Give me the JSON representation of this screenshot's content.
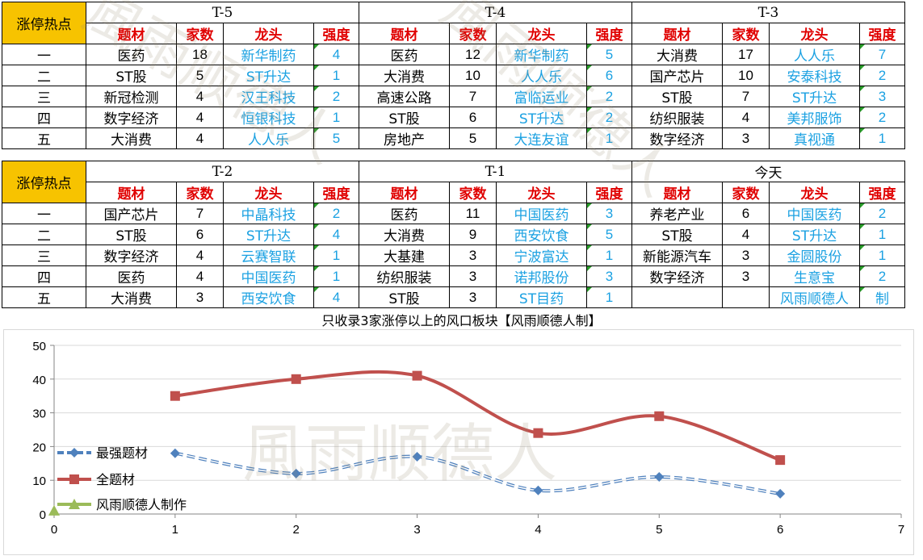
{
  "title_cell": "涨停热点",
  "headers": {
    "theme": "题材",
    "count": "家数",
    "leader": "龙头",
    "strength": "强度"
  },
  "ranks": [
    "一",
    "二",
    "三",
    "四",
    "五"
  ],
  "tables": [
    {
      "periods": [
        {
          "label": "T-5",
          "rows": [
            [
              "医药",
              "18",
              "新华制药",
              "4"
            ],
            [
              "ST股",
              "5",
              "ST升达",
              "1"
            ],
            [
              "新冠检测",
              "4",
              "汉王科技",
              "2"
            ],
            [
              "数字经济",
              "4",
              "恒银科技",
              "1"
            ],
            [
              "大消费",
              "4",
              "人人乐",
              "5"
            ]
          ]
        },
        {
          "label": "T-4",
          "rows": [
            [
              "医药",
              "12",
              "新华制药",
              "5"
            ],
            [
              "大消费",
              "10",
              "人人乐",
              "6"
            ],
            [
              "高速公路",
              "7",
              "富临运业",
              "2"
            ],
            [
              "ST股",
              "6",
              "ST升达",
              "2"
            ],
            [
              "房地产",
              "5",
              "大连友谊",
              "1"
            ]
          ]
        },
        {
          "label": "T-3",
          "rows": [
            [
              "大消费",
              "17",
              "人人乐",
              "7"
            ],
            [
              "国产芯片",
              "10",
              "安泰科技",
              "2"
            ],
            [
              "ST股",
              "7",
              "ST升达",
              "3"
            ],
            [
              "纺织服装",
              "4",
              "美邦服饰",
              "2"
            ],
            [
              "数字经济",
              "3",
              "真视通",
              "1"
            ]
          ]
        }
      ]
    },
    {
      "periods": [
        {
          "label": "T-2",
          "rows": [
            [
              "国产芯片",
              "7",
              "中晶科技",
              "2"
            ],
            [
              "ST股",
              "6",
              "ST升达",
              "4"
            ],
            [
              "数字经济",
              "4",
              "云赛智联",
              "1"
            ],
            [
              "医药",
              "4",
              "中国医药",
              "1"
            ],
            [
              "大消费",
              "3",
              "西安饮食",
              "4"
            ]
          ]
        },
        {
          "label": "T-1",
          "rows": [
            [
              "医药",
              "11",
              "中国医药",
              "3"
            ],
            [
              "大消费",
              "9",
              "西安饮食",
              "5"
            ],
            [
              "大基建",
              "3",
              "宁波富达",
              "1"
            ],
            [
              "纺织服装",
              "3",
              "诺邦股份",
              "3"
            ],
            [
              "ST股",
              "3",
              "ST目药",
              "1"
            ]
          ]
        },
        {
          "label": "今天",
          "rows": [
            [
              "养老产业",
              "6",
              "中国医药",
              "2"
            ],
            [
              "ST股",
              "4",
              "ST升达",
              "1"
            ],
            [
              "新能源汽车",
              "3",
              "金圆股份",
              "1"
            ],
            [
              "数字经济",
              "3",
              "生意宝",
              "2"
            ],
            [
              "",
              "",
              "风雨顺德人",
              "制"
            ]
          ]
        }
      ]
    }
  ],
  "note": "只收录3家涨停以上的风口板块【风雨顺德人制】",
  "watermark": "風雨顺德人",
  "chart_data": {
    "type": "line",
    "x": [
      1,
      2,
      3,
      4,
      5,
      6
    ],
    "series": [
      {
        "name": "最强题材",
        "values": [
          18,
          12,
          17,
          7,
          11,
          6
        ],
        "color": "#4f81bd",
        "style": "dashed",
        "marker": "diamond"
      },
      {
        "name": "全题材",
        "values": [
          35,
          40,
          41,
          24,
          29,
          16
        ],
        "color": "#c0504d",
        "style": "solid",
        "marker": "square"
      },
      {
        "name": "风雨顺德人制作",
        "values": [
          null,
          null,
          null,
          null,
          null,
          null
        ],
        "point_at_origin": 1,
        "color": "#9bbb59",
        "marker": "triangle"
      }
    ],
    "xlim": [
      0,
      7
    ],
    "ylim": [
      0,
      50
    ],
    "xticks": [
      "0",
      "1",
      "2",
      "3",
      "4",
      "5",
      "6",
      "7"
    ],
    "yticks": [
      "0",
      "10",
      "20",
      "30",
      "40",
      "50"
    ],
    "legend": "left-middle",
    "grid": "horizontal"
  }
}
